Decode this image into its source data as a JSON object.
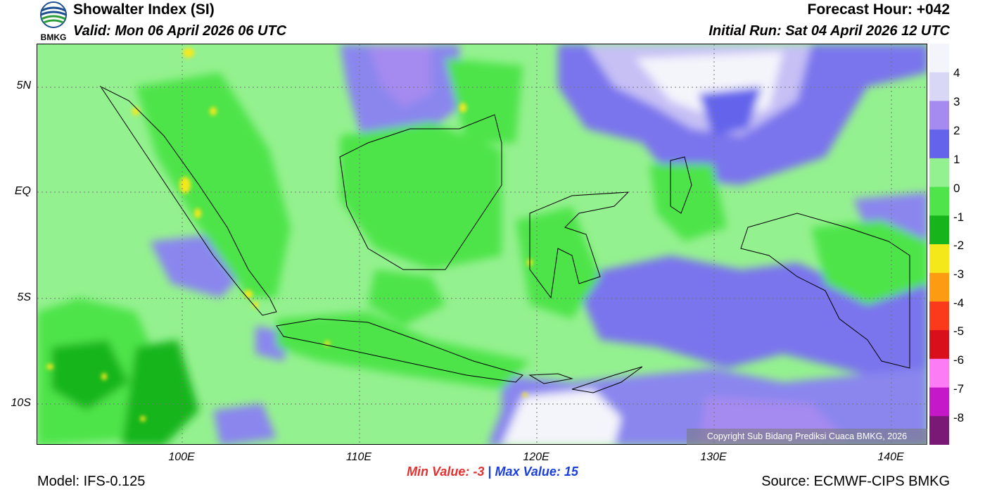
{
  "header": {
    "title": "Showalter Index (SI)",
    "valid": "Valid: Mon 06 April 2026 06 UTC",
    "forecast_hour": "Forecast Hour: +042",
    "initial_run": "Initial Run: Sat 04 April 2026 12 UTC"
  },
  "logo": {
    "text": "BMKG",
    "icon": "bmkg-logo-icon"
  },
  "axes": {
    "y_labels": [
      "5N",
      "EQ",
      "5S",
      "10S"
    ],
    "x_labels": [
      "100E",
      "110E",
      "120E",
      "130E",
      "140E"
    ]
  },
  "colorbar": {
    "labels": [
      "4",
      "3",
      "2",
      "1",
      "0",
      "-1",
      "-2",
      "-3",
      "-4",
      "-5",
      "-6",
      "-7",
      "-8"
    ],
    "colors": [
      "#f4f4fb",
      "#d8d8f6",
      "#a58af0",
      "#6363ec",
      "#94f18f",
      "#4ee44a",
      "#17b51b",
      "#f5e81a",
      "#fd9b12",
      "#fa3a1a",
      "#d9101c",
      "#fb7cf5",
      "#c519c9",
      "#7a1976"
    ]
  },
  "stats": {
    "min_label": "Min Value:",
    "min_value": "-3",
    "sep": "|",
    "max_label": "Max Value:",
    "max_value": "15"
  },
  "footer": {
    "model": "Model: IFS-0.125",
    "source": "Source: ECMWF-CIPS BMKG",
    "copyright": "Copyright Sub Bidang Prediksi Cuaca BMKG, 2026"
  }
}
